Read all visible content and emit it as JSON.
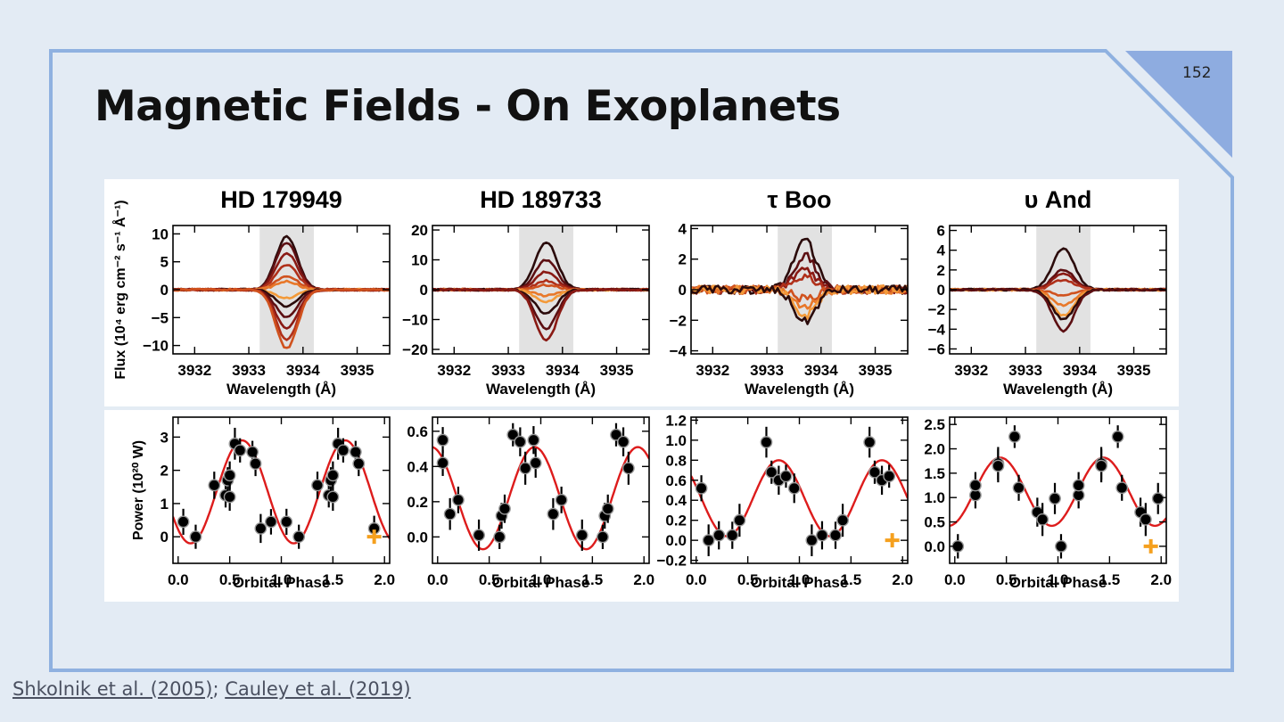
{
  "slide": {
    "title": "Magnetic Fields - On Exoplanets",
    "number": "152"
  },
  "citations": {
    "first": "Shkolnik et al. (2005)",
    "separator": ";",
    "second": "Cauley et al. (2019)"
  },
  "chart_data": {
    "type": "line",
    "panels": [
      {
        "title": "HD 179949",
        "top_ylim": [
          -11.5,
          11.5
        ],
        "top_yticks": [
          -10,
          -5,
          0,
          5,
          10
        ],
        "amps": [
          9.5,
          8.5,
          6.5,
          4.5,
          2.5,
          1.5,
          -1.5,
          -3,
          -5,
          -7,
          -9,
          -10.5
        ],
        "bottom_ylim": [
          -0.8,
          3.6
        ],
        "bottom_yticks": [
          0,
          1,
          2,
          3
        ],
        "points": [
          [
            0.05,
            0.45
          ],
          [
            0.17,
            0.0
          ],
          [
            0.35,
            1.55
          ],
          [
            0.46,
            1.25
          ],
          [
            0.48,
            1.7
          ],
          [
            0.5,
            1.85
          ],
          [
            0.5,
            1.2
          ],
          [
            0.55,
            2.8
          ],
          [
            0.6,
            2.6
          ],
          [
            0.72,
            2.55
          ],
          [
            0.75,
            2.2
          ],
          [
            0.8,
            0.25
          ],
          [
            0.9,
            0.45
          ],
          [
            1.05,
            0.45
          ],
          [
            1.17,
            0.0
          ],
          [
            1.35,
            1.55
          ],
          [
            1.46,
            1.25
          ],
          [
            1.48,
            1.7
          ],
          [
            1.5,
            1.85
          ],
          [
            1.5,
            1.2
          ],
          [
            1.55,
            2.8
          ],
          [
            1.6,
            2.6
          ],
          [
            1.72,
            2.55
          ],
          [
            1.75,
            2.2
          ],
          [
            1.9,
            0.25
          ]
        ],
        "curve": {
          "mid": 1.35,
          "amp": 1.55,
          "peak": 0.62
        },
        "marker": [
          1.9,
          0.0
        ]
      },
      {
        "title": "HD 189733",
        "top_ylim": [
          -21.5,
          21.5
        ],
        "top_yticks": [
          -20,
          -10,
          0,
          10,
          20
        ],
        "amps": [
          16,
          10,
          6,
          3,
          1.5,
          -2,
          -4,
          -8,
          -13,
          -17
        ],
        "bottom_ylim": [
          -0.15,
          0.68
        ],
        "bottom_yticks": [
          0.0,
          0.2,
          0.4,
          0.6
        ],
        "points": [
          [
            0.05,
            0.55
          ],
          [
            0.05,
            0.42
          ],
          [
            0.12,
            0.13
          ],
          [
            0.2,
            0.21
          ],
          [
            0.4,
            0.01
          ],
          [
            0.6,
            0.0
          ],
          [
            0.62,
            0.12
          ],
          [
            0.65,
            0.16
          ],
          [
            0.73,
            0.58
          ],
          [
            0.8,
            0.54
          ],
          [
            0.85,
            0.39
          ],
          [
            0.93,
            0.55
          ],
          [
            0.95,
            0.42
          ],
          [
            1.12,
            0.13
          ],
          [
            1.2,
            0.21
          ],
          [
            1.4,
            0.01
          ],
          [
            1.6,
            0.0
          ],
          [
            1.62,
            0.12
          ],
          [
            1.65,
            0.16
          ],
          [
            1.73,
            0.58
          ],
          [
            1.8,
            0.54
          ],
          [
            1.85,
            0.39
          ]
        ],
        "curve": {
          "mid": 0.22,
          "amp": 0.29,
          "peak": 0.94
        },
        "marker": null
      },
      {
        "title": "τ Boo",
        "top_ylim": [
          -4.2,
          4.2
        ],
        "top_yticks": [
          -4,
          -2,
          0,
          2,
          4
        ],
        "amps": [
          3.3,
          2.2,
          1.4,
          0.9,
          -0.6,
          -1.2,
          -1.7,
          -2.1
        ],
        "bottom_ylim": [
          -0.23,
          1.23
        ],
        "bottom_yticks": [
          -0.2,
          0.0,
          0.2,
          0.4,
          0.6,
          0.8,
          1.0,
          1.2
        ],
        "points": [
          [
            0.05,
            0.52
          ],
          [
            0.12,
            0.0
          ],
          [
            0.22,
            0.05
          ],
          [
            0.35,
            0.05
          ],
          [
            0.42,
            0.2
          ],
          [
            0.68,
            0.98
          ],
          [
            0.73,
            0.68
          ],
          [
            0.8,
            0.6
          ],
          [
            0.87,
            0.64
          ],
          [
            0.95,
            0.52
          ],
          [
            1.12,
            0.0
          ],
          [
            1.22,
            0.05
          ],
          [
            1.35,
            0.05
          ],
          [
            1.42,
            0.2
          ],
          [
            1.68,
            0.98
          ],
          [
            1.73,
            0.68
          ],
          [
            1.8,
            0.6
          ],
          [
            1.87,
            0.64
          ]
        ],
        "curve": {
          "mid": 0.42,
          "amp": 0.38,
          "peak": 0.8
        },
        "marker": [
          1.9,
          0.0
        ]
      },
      {
        "title": "υ And",
        "top_ylim": [
          -6.5,
          6.5
        ],
        "top_yticks": [
          -6,
          -4,
          -2,
          0,
          2,
          4,
          6
        ],
        "amps": [
          4.2,
          2.0,
          1.6,
          1.0,
          -0.6,
          -1.6,
          -2.6,
          -3.0,
          -4.2
        ],
        "bottom_ylim": [
          -0.35,
          2.65
        ],
        "bottom_yticks": [
          0.0,
          0.5,
          1.0,
          1.5,
          2.0,
          2.5
        ],
        "points": [
          [
            0.03,
            0.0
          ],
          [
            0.2,
            1.05
          ],
          [
            0.2,
            1.25
          ],
          [
            0.42,
            1.7
          ],
          [
            0.42,
            1.65
          ],
          [
            0.58,
            2.25
          ],
          [
            0.62,
            1.2
          ],
          [
            0.8,
            0.7
          ],
          [
            0.85,
            0.55
          ],
          [
            0.97,
            0.98
          ],
          [
            1.03,
            0.0
          ],
          [
            1.2,
            1.05
          ],
          [
            1.2,
            1.25
          ],
          [
            1.42,
            1.7
          ],
          [
            1.42,
            1.65
          ],
          [
            1.58,
            2.25
          ],
          [
            1.62,
            1.2
          ],
          [
            1.8,
            0.7
          ],
          [
            1.85,
            0.55
          ],
          [
            1.97,
            0.98
          ]
        ],
        "curve": {
          "mid": 1.12,
          "amp": 0.7,
          "peak": 0.44
        },
        "marker": [
          1.9,
          0.0
        ]
      }
    ],
    "top_xlim": [
      3931.6,
      3935.6
    ],
    "top_xticks": [
      3932,
      3933,
      3934,
      3935
    ],
    "top_band": [
      3933.2,
      3934.2
    ],
    "top_xlabel": "Wavelength (Å)",
    "top_ylabel": "Flux (10⁴ erg cm⁻² s⁻¹ Å⁻¹)",
    "bottom_xlim": [
      -0.05,
      2.05
    ],
    "bottom_xticks": [
      "0.0",
      "0.5",
      "1.0",
      "1.5",
      "2.0"
    ],
    "bottom_xlabel": "Orbital Phase",
    "bottom_ylabel": "Power (10²⁰ W)",
    "colors": {
      "curve": "#dd1c1c",
      "marker": "#f5a01e",
      "band": "#e2e2e2",
      "lines": [
        "#2b0b0b",
        "#5c0f12",
        "#8a1a14",
        "#b0301a",
        "#d0521e",
        "#e8782a",
        "#f39a3a"
      ]
    }
  }
}
